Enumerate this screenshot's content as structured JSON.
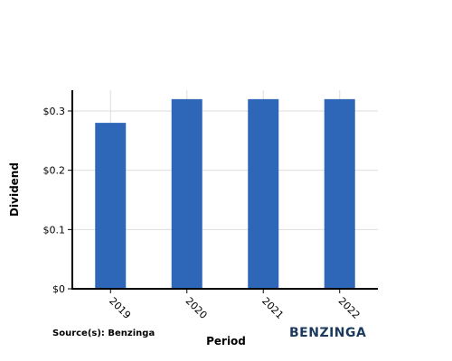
{
  "chart_data": {
    "type": "bar",
    "categories": [
      "2019",
      "2020",
      "2021",
      "2022"
    ],
    "values": [
      0.28,
      0.32,
      0.32,
      0.32
    ],
    "title": "",
    "xlabel": "Period",
    "ylabel": "Dividend",
    "ylim": [
      0,
      0.335
    ],
    "yticks": [
      0,
      0.1,
      0.2,
      0.3
    ],
    "ytick_labels": [
      "$0",
      "$0.1",
      "$0.2",
      "$0.3"
    ],
    "bar_color": "#2e67b8",
    "grid": true
  },
  "footer": {
    "source": "Source(s): Benzinga",
    "logo": "BENZINGA"
  }
}
